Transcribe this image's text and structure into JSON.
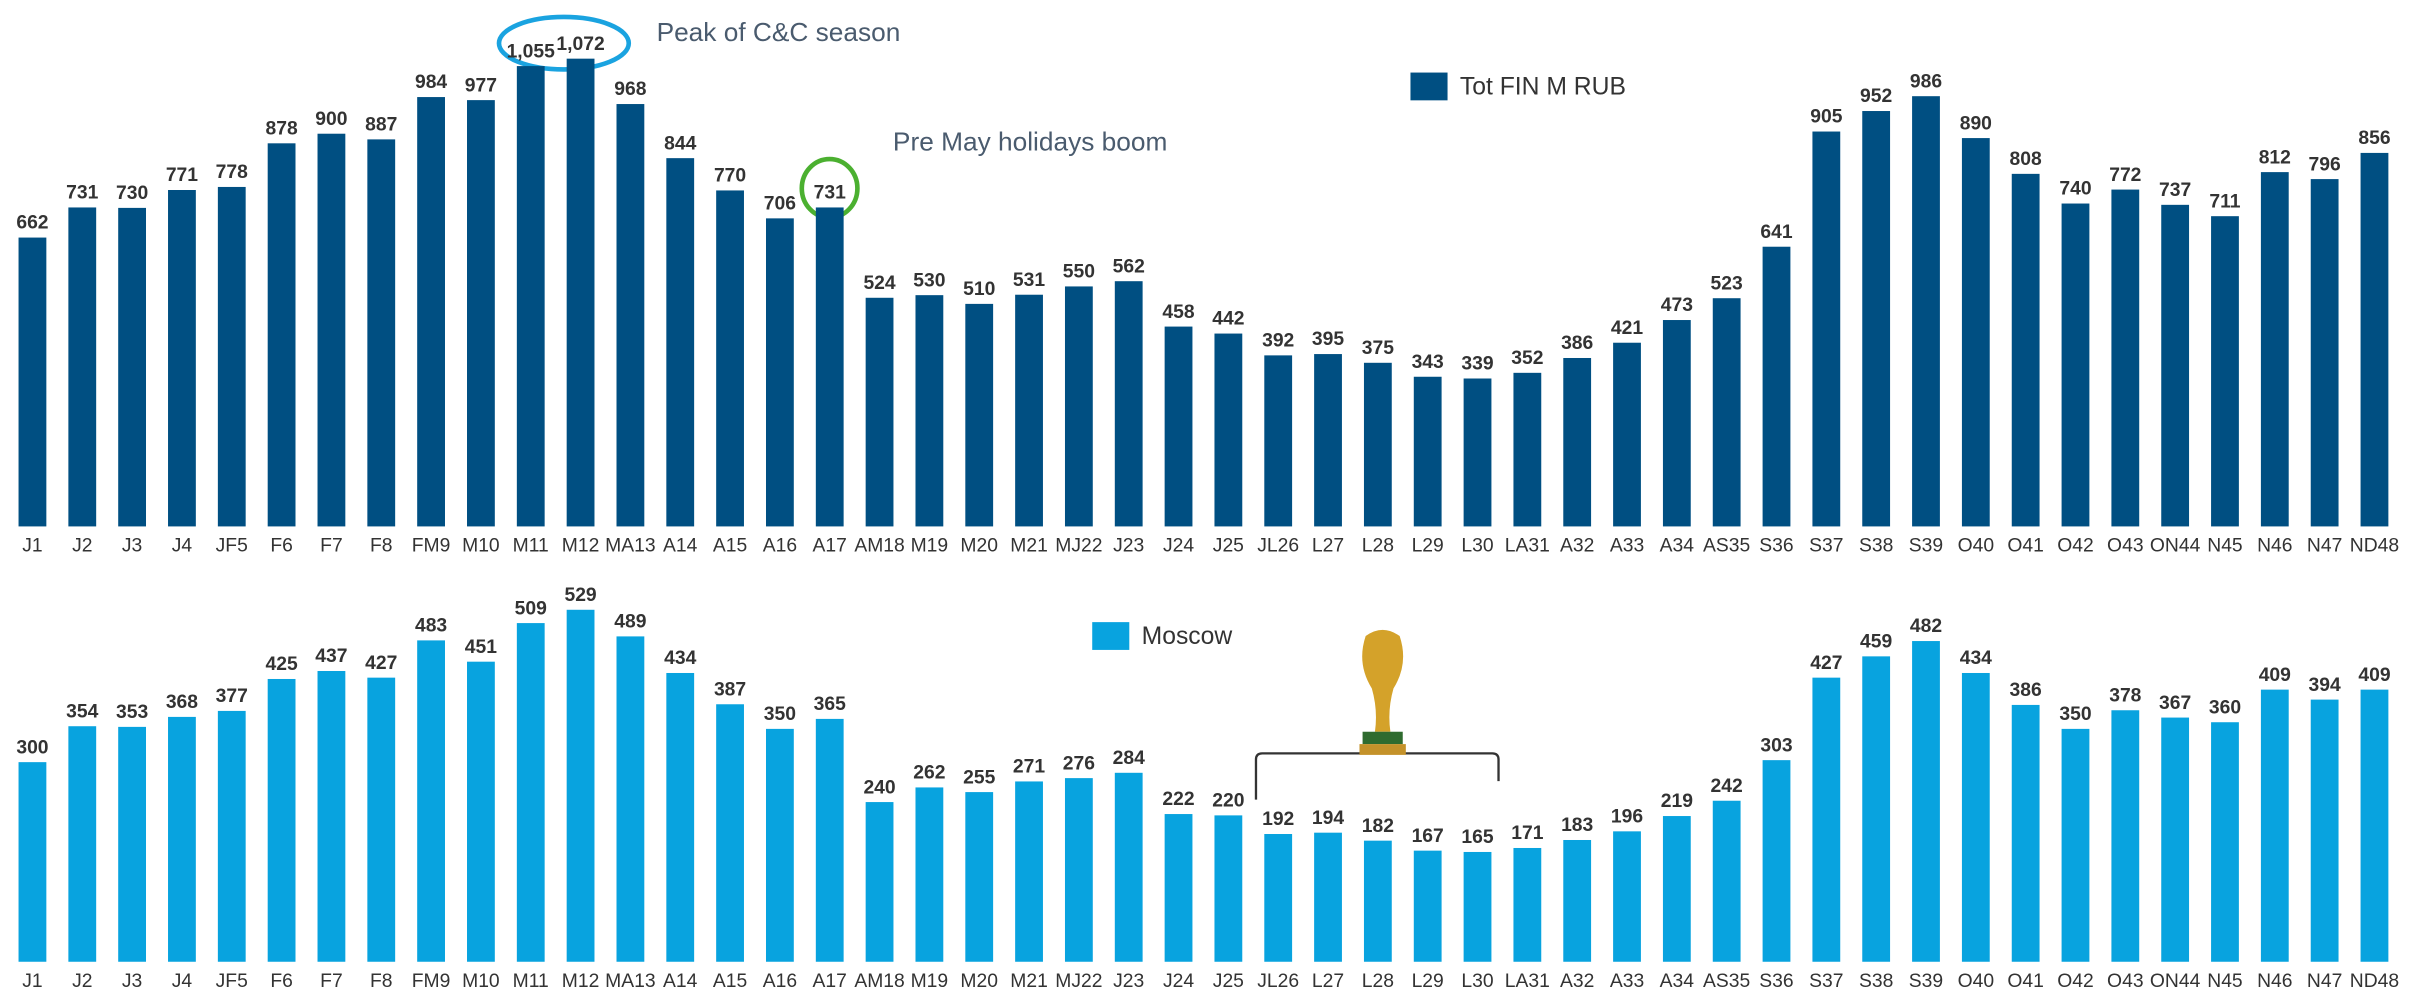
{
  "chart_data": [
    {
      "type": "bar",
      "categories": [
        "J1",
        "J2",
        "J3",
        "J4",
        "JF5",
        "F6",
        "F7",
        "F8",
        "FM9",
        "M10",
        "M11",
        "M12",
        "MA13",
        "A14",
        "A15",
        "A16",
        "A17",
        "AM18",
        "M19",
        "M20",
        "M21",
        "MJ22",
        "J23",
        "J24",
        "J25",
        "JL26",
        "L27",
        "L28",
        "L29",
        "L30",
        "LA31",
        "A32",
        "A33",
        "A34",
        "AS35",
        "S36",
        "S37",
        "S38",
        "S39",
        "O40",
        "O41",
        "O42",
        "O43",
        "ON44",
        "N45",
        "N46",
        "N47",
        "ND48"
      ],
      "series": [
        {
          "name": "Tot FIN M RUB",
          "color": "#004f82",
          "values": [
            662,
            731,
            730,
            771,
            778,
            878,
            900,
            887,
            984,
            977,
            1055,
            1072,
            968,
            844,
            770,
            706,
            731,
            524,
            530,
            510,
            531,
            550,
            562,
            458,
            442,
            392,
            395,
            375,
            343,
            339,
            352,
            386,
            421,
            473,
            523,
            641,
            905,
            952,
            986,
            890,
            808,
            740,
            772,
            737,
            711,
            812,
            796,
            856
          ],
          "value_labels": [
            "662",
            "731",
            "730",
            "771",
            "778",
            "878",
            "900",
            "887",
            "984",
            "977",
            "1,055",
            "1,072",
            "968",
            "844",
            "770",
            "706",
            "731",
            "524",
            "530",
            "510",
            "531",
            "550",
            "562",
            "458",
            "442",
            "392",
            "395",
            "375",
            "343",
            "339",
            "352",
            "386",
            "421",
            "473",
            "523",
            "641",
            "905",
            "952",
            "986",
            "890",
            "808",
            "740",
            "772",
            "737",
            "711",
            "812",
            "796",
            "856"
          ]
        }
      ],
      "annotations": [
        "Peak of C&C season",
        "Pre May holidays boom"
      ]
    },
    {
      "type": "bar",
      "categories": [
        "J1",
        "J2",
        "J3",
        "J4",
        "JF5",
        "F6",
        "F7",
        "F8",
        "FM9",
        "M10",
        "M11",
        "M12",
        "MA13",
        "A14",
        "A15",
        "A16",
        "A17",
        "AM18",
        "M19",
        "M20",
        "M21",
        "MJ22",
        "J23",
        "J24",
        "J25",
        "JL26",
        "L27",
        "L28",
        "L29",
        "L30",
        "LA31",
        "A32",
        "A33",
        "A34",
        "AS35",
        "S36",
        "S37",
        "S38",
        "S39",
        "O40",
        "O41",
        "O42",
        "O43",
        "ON44",
        "N45",
        "N46",
        "N47",
        "ND48"
      ],
      "series": [
        {
          "name": "Moscow",
          "color": "#08a3df",
          "values": [
            300,
            354,
            353,
            368,
            377,
            425,
            437,
            427,
            483,
            451,
            509,
            529,
            489,
            434,
            387,
            350,
            365,
            240,
            262,
            255,
            271,
            276,
            284,
            222,
            220,
            192,
            194,
            182,
            167,
            165,
            171,
            183,
            196,
            219,
            242,
            303,
            427,
            459,
            482,
            434,
            386,
            350,
            378,
            367,
            360,
            409,
            394,
            409
          ]
        }
      ]
    }
  ]
}
